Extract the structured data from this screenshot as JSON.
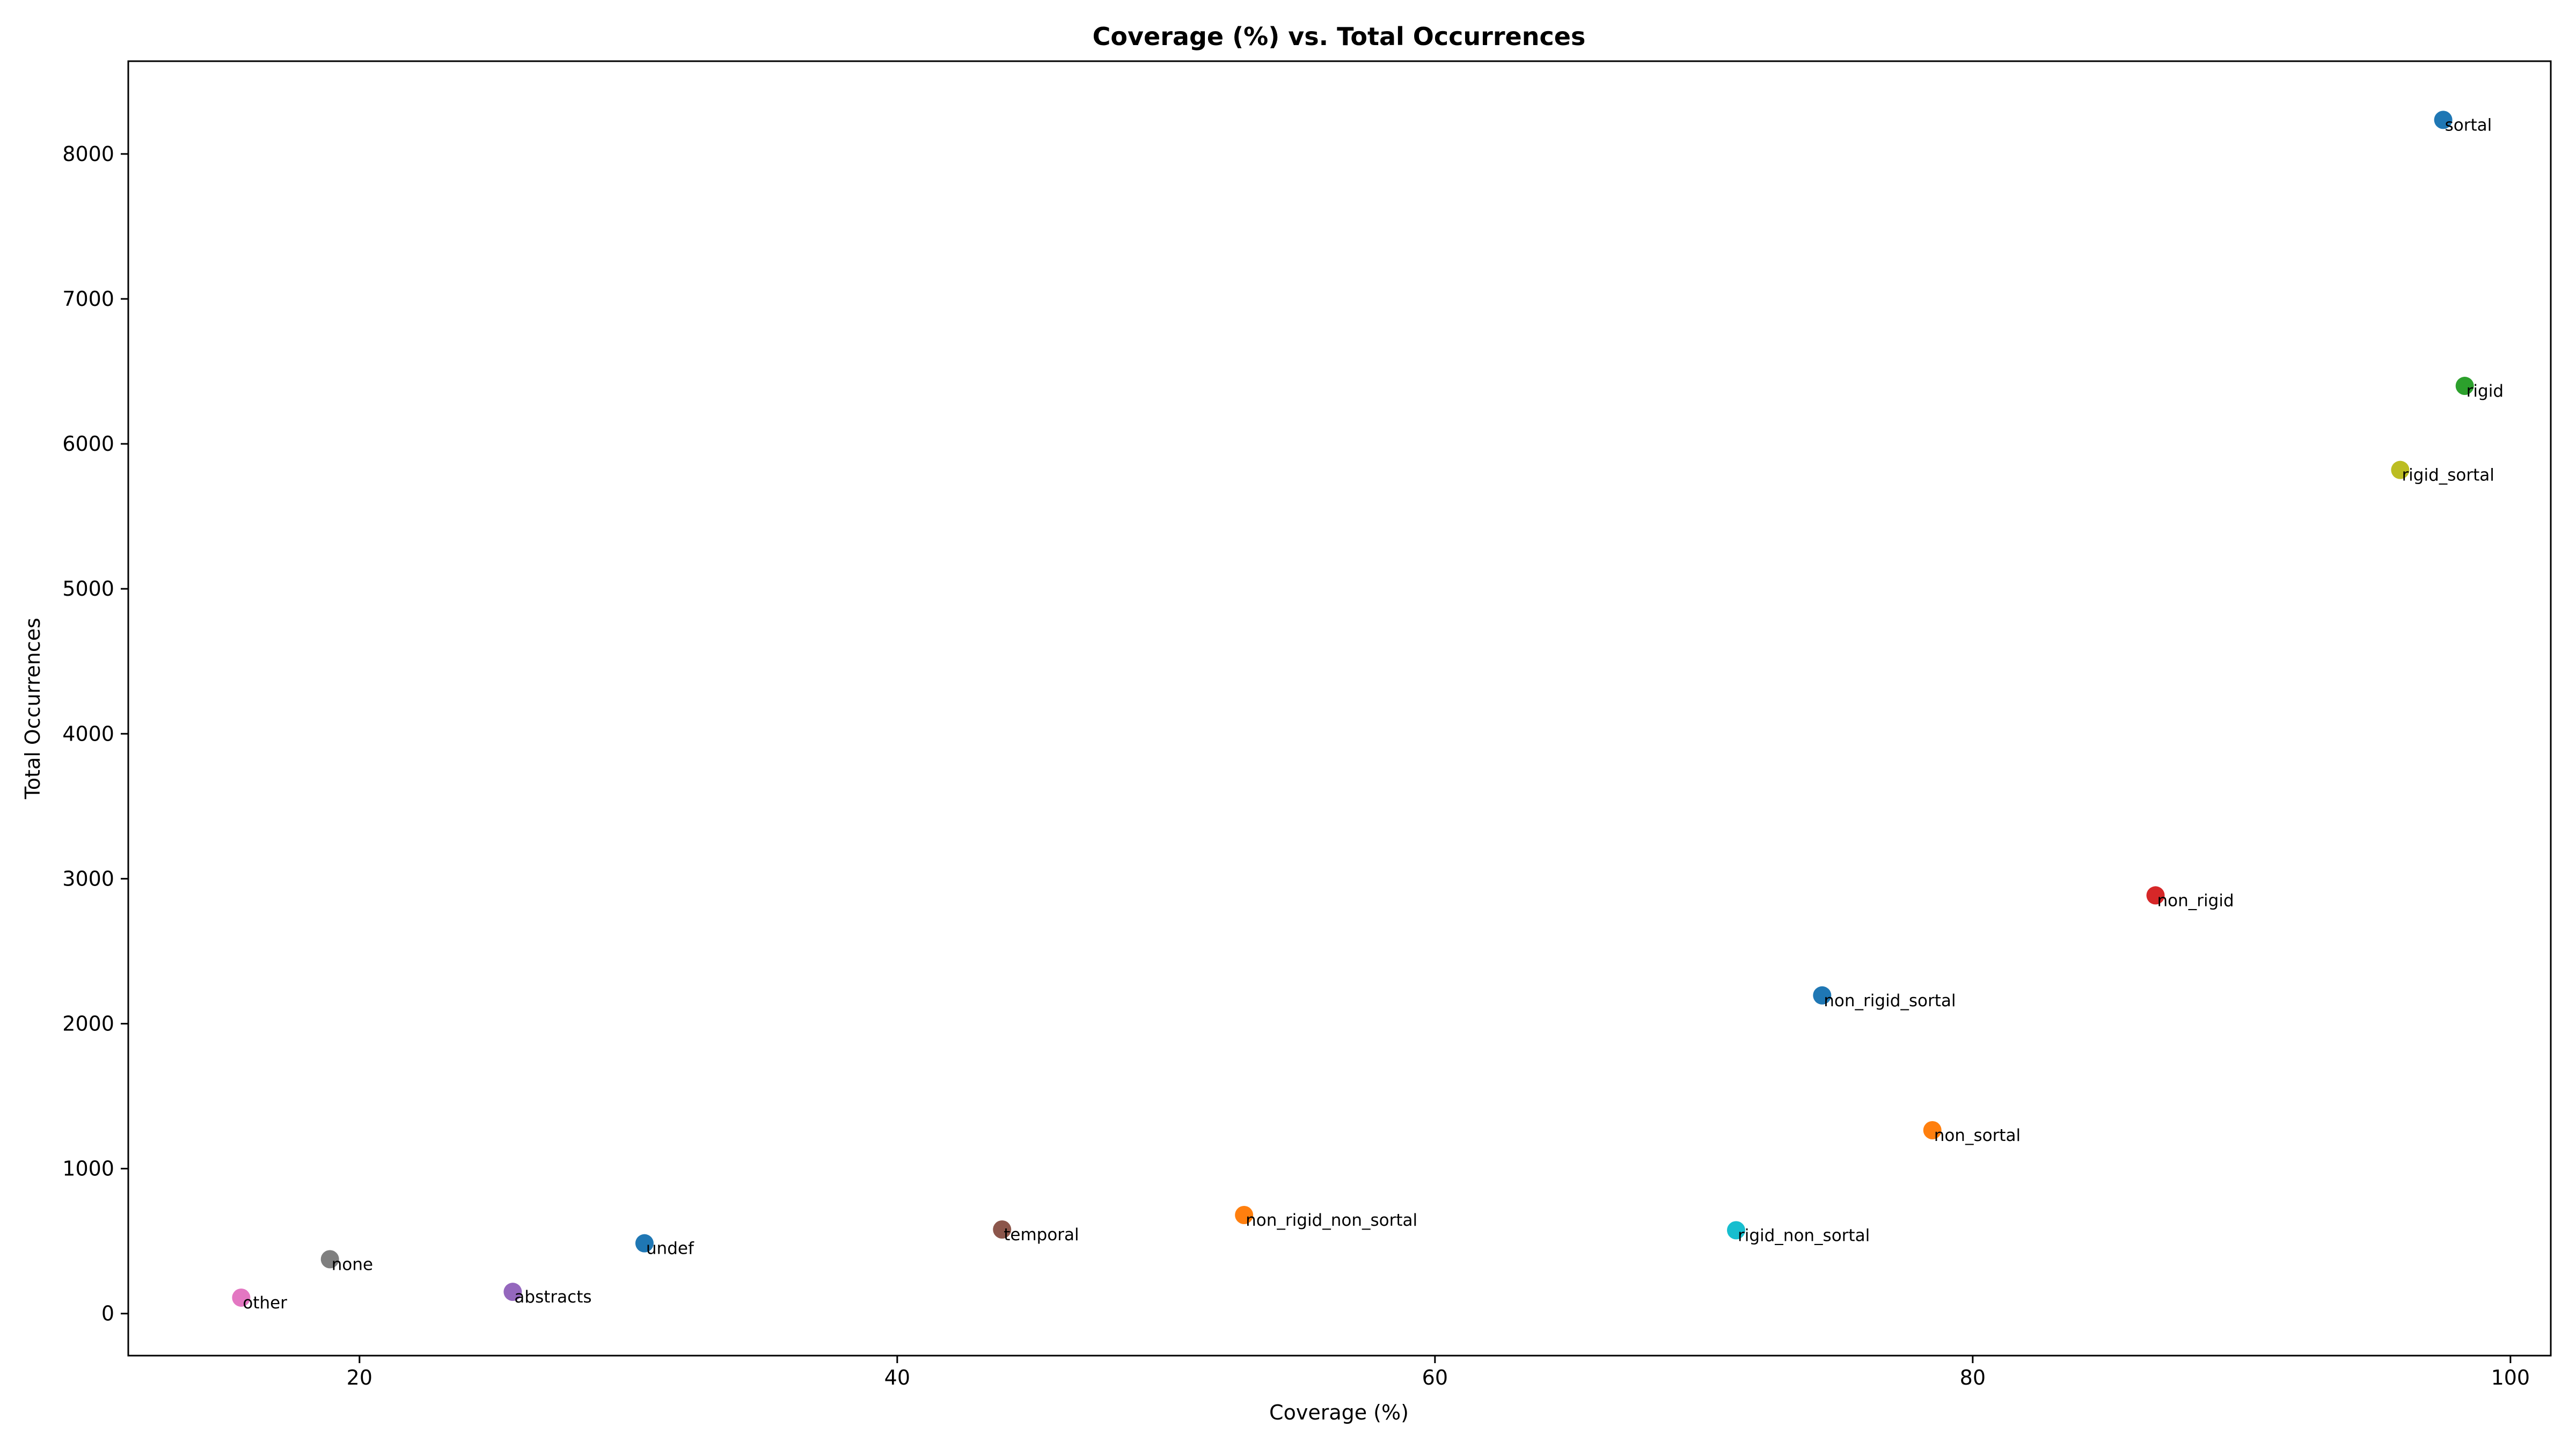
{
  "chart_data": {
    "type": "scatter",
    "title": "Coverage (%) vs. Total Occurrences",
    "xlabel": "Coverage (%)",
    "ylabel": "Total Occurrences",
    "xlim": [
      11.4,
      101.5
    ],
    "ylim": [
      -290,
      8640
    ],
    "x_ticks": [
      20,
      40,
      60,
      80,
      100
    ],
    "y_ticks": [
      0,
      1000,
      2000,
      3000,
      4000,
      5000,
      6000,
      7000,
      8000
    ],
    "grid": false,
    "legend": "none",
    "points": [
      {
        "label": "sortal",
        "x": 97.5,
        "y": 8235,
        "color": "#1f77b4"
      },
      {
        "label": "rigid",
        "x": 98.3,
        "y": 6400,
        "color": "#2ca02c"
      },
      {
        "label": "rigid_sortal",
        "x": 95.9,
        "y": 5820,
        "color": "#bcbd22"
      },
      {
        "label": "non_rigid",
        "x": 86.8,
        "y": 2885,
        "color": "#d62728"
      },
      {
        "label": "non_rigid_sortal",
        "x": 74.4,
        "y": 2195,
        "color": "#1f77b4"
      },
      {
        "label": "non_sortal",
        "x": 78.5,
        "y": 1265,
        "color": "#ff7f0e"
      },
      {
        "label": "non_rigid_non_sortal",
        "x": 52.9,
        "y": 680,
        "color": "#ff7f0e"
      },
      {
        "label": "rigid_non_sortal",
        "x": 71.2,
        "y": 575,
        "color": "#17becf"
      },
      {
        "label": "temporal",
        "x": 43.9,
        "y": 580,
        "color": "#8c564b"
      },
      {
        "label": "undef",
        "x": 30.6,
        "y": 485,
        "color": "#1f77b4"
      },
      {
        "label": "none",
        "x": 18.9,
        "y": 375,
        "color": "#7f7f7f"
      },
      {
        "label": "abstracts",
        "x": 25.7,
        "y": 150,
        "color": "#9467bd"
      },
      {
        "label": "other",
        "x": 15.6,
        "y": 110,
        "color": "#e377c2"
      }
    ]
  }
}
